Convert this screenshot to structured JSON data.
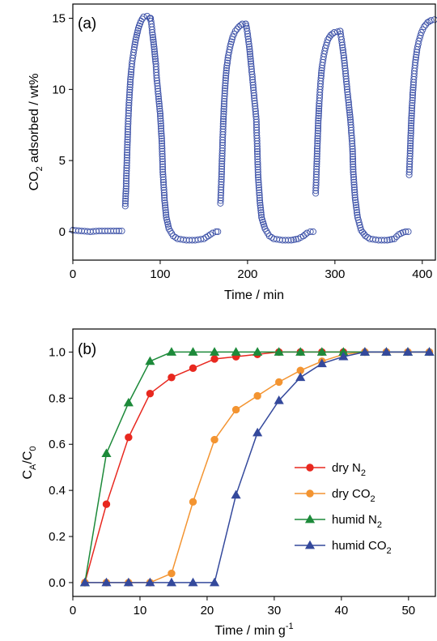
{
  "chart_data": [
    {
      "type": "scatter",
      "panel_label": "(a)",
      "xlabel": "Time / min",
      "ylabel_main": "CO",
      "ylabel_sub": "2",
      "ylabel_rest": " adsorbed / wt%",
      "xlim": [
        0,
        415
      ],
      "ylim": [
        -2,
        16
      ],
      "xticks": [
        0,
        100,
        200,
        300,
        400
      ],
      "yticks": [
        0,
        5,
        10,
        15
      ],
      "marker": "open-circle",
      "color": "#3a4fa6",
      "cycles": [
        {
          "baseline": [
            [
              0,
              0.1
            ],
            [
              10,
              0.05
            ],
            [
              20,
              0.0
            ],
            [
              30,
              0.05
            ],
            [
              40,
              0.05
            ],
            [
              50,
              0.05
            ],
            [
              56,
              0.05
            ]
          ],
          "adsorption": [
            [
              60,
              1.8
            ],
            [
              61,
              3.2
            ],
            [
              62,
              5.2
            ],
            [
              63,
              7.2
            ],
            [
              64,
              8.7
            ],
            [
              65,
              9.8
            ],
            [
              66,
              10.7
            ],
            [
              67,
              11.4
            ],
            [
              68,
              12.0
            ],
            [
              70,
              12.8
            ],
            [
              72,
              13.5
            ],
            [
              75,
              14.3
            ],
            [
              78,
              14.8
            ],
            [
              81,
              15.1
            ],
            [
              85,
              15.15
            ],
            [
              88,
              15.0
            ],
            [
              89,
              15.0
            ]
          ],
          "desorption": [
            [
              89,
              15.0
            ],
            [
              90,
              14.6
            ],
            [
              91,
              14.0
            ],
            [
              93,
              13.0
            ],
            [
              95,
              11.8
            ],
            [
              96,
              10.8
            ],
            [
              98,
              9.5
            ],
            [
              100,
              8.3
            ],
            [
              102,
              6.2
            ],
            [
              103,
              4.2
            ],
            [
              105,
              2.2
            ],
            [
              107,
              1.0
            ],
            [
              110,
              0.2
            ],
            [
              115,
              -0.3
            ],
            [
              120,
              -0.5
            ],
            [
              130,
              -0.6
            ],
            [
              140,
              -0.6
            ],
            [
              150,
              -0.5
            ],
            [
              155,
              -0.3
            ],
            [
              160,
              -0.1
            ],
            [
              164,
              0.0
            ],
            [
              166,
              0.0
            ]
          ]
        },
        {
          "adsorption": [
            [
              169,
              2.0
            ],
            [
              170,
              3.5
            ],
            [
              171,
              5.5
            ],
            [
              172,
              7.4
            ],
            [
              173,
              8.8
            ],
            [
              174,
              9.9
            ],
            [
              175,
              10.8
            ],
            [
              176,
              11.5
            ],
            [
              178,
              12.4
            ],
            [
              180,
              13.0
            ],
            [
              183,
              13.7
            ],
            [
              186,
              14.1
            ],
            [
              190,
              14.4
            ],
            [
              194,
              14.6
            ],
            [
              198,
              14.6
            ]
          ],
          "desorption": [
            [
              198,
              14.6
            ],
            [
              199,
              14.3
            ],
            [
              200,
              13.9
            ],
            [
              202,
              13.0
            ],
            [
              204,
              11.8
            ],
            [
              206,
              10.5
            ],
            [
              208,
              9.2
            ],
            [
              210,
              7.9
            ],
            [
              211,
              6.0
            ],
            [
              212,
              4.0
            ],
            [
              214,
              2.2
            ],
            [
              216,
              1.0
            ],
            [
              220,
              0.2
            ],
            [
              225,
              -0.3
            ],
            [
              230,
              -0.5
            ],
            [
              240,
              -0.6
            ],
            [
              250,
              -0.6
            ],
            [
              258,
              -0.5
            ],
            [
              264,
              -0.3
            ],
            [
              268,
              -0.1
            ],
            [
              272,
              0.0
            ],
            [
              275,
              0.0
            ]
          ]
        },
        {
          "adsorption": [
            [
              278,
              2.7
            ],
            [
              279,
              4.4
            ],
            [
              280,
              6.2
            ],
            [
              281,
              7.8
            ],
            [
              282,
              9.0
            ],
            [
              283,
              10.0
            ],
            [
              284,
              10.8
            ],
            [
              285,
              11.5
            ],
            [
              287,
              12.3
            ],
            [
              289,
              12.9
            ],
            [
              292,
              13.5
            ],
            [
              295,
              13.8
            ],
            [
              299,
              14.0
            ],
            [
              303,
              14.05
            ],
            [
              306,
              14.1
            ]
          ],
          "desorption": [
            [
              306,
              14.1
            ],
            [
              307,
              13.7
            ],
            [
              308,
              13.3
            ],
            [
              310,
              12.4
            ],
            [
              312,
              11.3
            ],
            [
              314,
              10.0
            ],
            [
              316,
              8.9
            ],
            [
              318,
              7.7
            ],
            [
              320,
              6.0
            ],
            [
              321,
              4.2
            ],
            [
              323,
              2.4
            ],
            [
              326,
              1.0
            ],
            [
              330,
              0.1
            ],
            [
              335,
              -0.3
            ],
            [
              340,
              -0.5
            ],
            [
              350,
              -0.6
            ],
            [
              360,
              -0.6
            ],
            [
              368,
              -0.5
            ],
            [
              373,
              -0.2
            ],
            [
              378,
              -0.05
            ],
            [
              381,
              0.0
            ],
            [
              384,
              0.0
            ]
          ]
        },
        {
          "adsorption": [
            [
              385,
              4.0
            ],
            [
              386,
              5.5
            ],
            [
              387,
              7.1
            ],
            [
              388,
              8.5
            ],
            [
              389,
              9.6
            ],
            [
              390,
              10.5
            ],
            [
              391,
              11.3
            ],
            [
              392,
              11.9
            ],
            [
              394,
              12.8
            ],
            [
              396,
              13.4
            ],
            [
              399,
              14.0
            ],
            [
              402,
              14.4
            ],
            [
              406,
              14.7
            ],
            [
              410,
              14.85
            ],
            [
              414,
              14.9
            ]
          ]
        }
      ]
    },
    {
      "type": "line",
      "panel_label": "(b)",
      "xlabel_main": "Time / min g",
      "xlabel_sup": "-1",
      "ylabel_main": "C",
      "ylabel_sub1": "A",
      "ylabel_mid": "/C",
      "ylabel_sub2": "0",
      "xlim": [
        0,
        54
      ],
      "ylim": [
        -0.06,
        1.1
      ],
      "xticks": [
        0,
        10,
        20,
        30,
        40,
        50
      ],
      "yticks": [
        0.0,
        0.2,
        0.4,
        0.6,
        0.8,
        1.0
      ],
      "ytick_labels": [
        "0.0",
        "0.2",
        "0.4",
        "0.6",
        "0.8",
        "1.0"
      ],
      "legend_position": "right",
      "series": [
        {
          "name_main": "dry N",
          "name_sub": "2",
          "marker": "circle",
          "color": "#e8281f",
          "x": [
            1.8,
            5.0,
            8.3,
            11.5,
            14.7,
            17.9,
            21.1,
            24.3,
            27.5,
            30.7,
            33.9,
            37.1,
            40.3,
            43.5,
            46.7,
            49.9,
            53.1
          ],
          "y": [
            0.0,
            0.34,
            0.63,
            0.82,
            0.89,
            0.93,
            0.97,
            0.98,
            0.99,
            1.0,
            1.0,
            1.0,
            1.0,
            1.0,
            1.0,
            1.0,
            1.0
          ]
        },
        {
          "name_main": "dry CO",
          "name_sub": "2",
          "marker": "circle",
          "color": "#f39431",
          "x": [
            1.8,
            5.0,
            8.3,
            11.5,
            14.7,
            17.9,
            21.1,
            24.3,
            27.5,
            30.7,
            33.9,
            37.1,
            40.3,
            43.5,
            46.7,
            49.9,
            53.1
          ],
          "y": [
            0.0,
            0.0,
            0.0,
            0.0,
            0.04,
            0.35,
            0.62,
            0.75,
            0.81,
            0.87,
            0.92,
            0.96,
            0.99,
            1.0,
            1.0,
            1.0,
            1.0
          ]
        },
        {
          "name_main": "humid N",
          "name_sub": "2",
          "marker": "triangle",
          "color": "#1d8a3a",
          "x": [
            1.8,
            5.0,
            8.3,
            11.5,
            14.7,
            17.9,
            21.1,
            24.3,
            27.5,
            30.7,
            33.9,
            37.1,
            40.3,
            43.5,
            46.7,
            49.9,
            53.1
          ],
          "y": [
            0.0,
            0.56,
            0.78,
            0.96,
            1.0,
            1.0,
            1.0,
            1.0,
            1.0,
            1.0,
            1.0,
            1.0,
            1.0,
            1.0,
            1.0,
            1.0,
            1.0
          ]
        },
        {
          "name_main": "humid CO",
          "name_sub": "2",
          "marker": "triangle",
          "color": "#34499c",
          "x": [
            1.8,
            5.0,
            8.3,
            11.5,
            14.7,
            17.9,
            21.1,
            24.3,
            27.5,
            30.7,
            33.9,
            37.1,
            40.3,
            43.5,
            46.7,
            49.9,
            53.1
          ],
          "y": [
            0.0,
            0.0,
            0.0,
            0.0,
            0.0,
            0.0,
            0.0,
            0.38,
            0.65,
            0.79,
            0.89,
            0.95,
            0.98,
            1.0,
            1.0,
            1.0,
            1.0
          ]
        }
      ]
    }
  ]
}
